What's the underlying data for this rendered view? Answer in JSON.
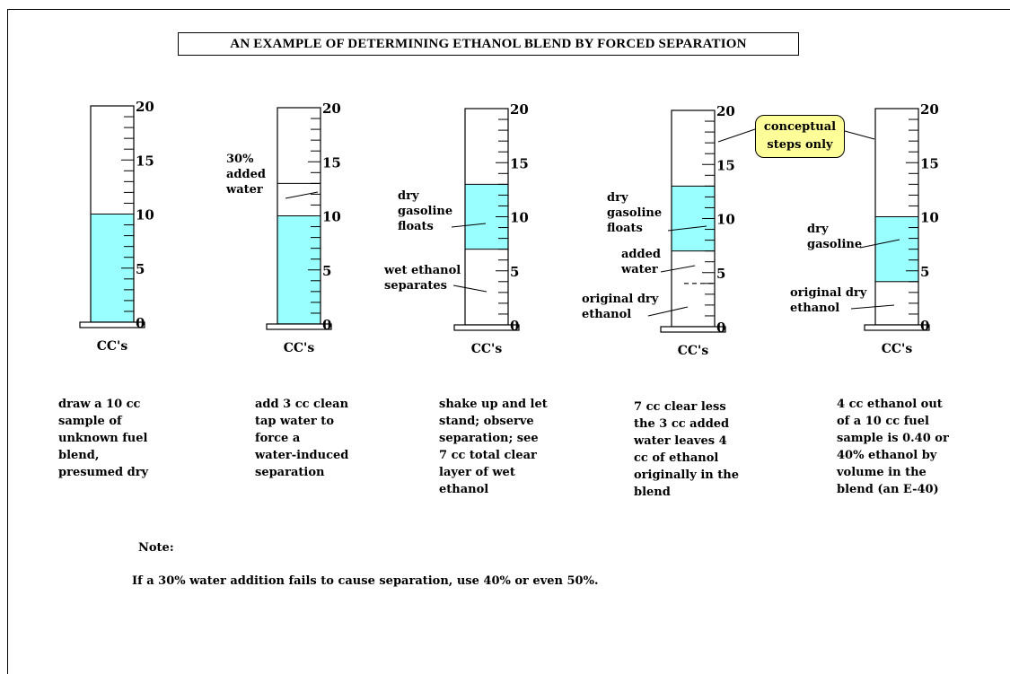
{
  "title": "AN EXAMPLE OF DETERMINING ETHANOL BLEND BY FORCED SEPARATION",
  "colors": {
    "liquid": "#99ffff",
    "callout_fill": "#ffff99",
    "ink": "#000000"
  },
  "scale": {
    "min": 0,
    "max": 20,
    "major_labels": [
      "0",
      "5",
      "10",
      "15",
      "20"
    ],
    "unit_label": "CC's"
  },
  "cylinders": [
    {
      "id": 1,
      "layers": [
        {
          "from": 0,
          "to": 10,
          "filled": true
        }
      ],
      "labels": [],
      "caption": "draw a 10 cc\nsample of\nunknown fuel\nblend,\npresumed dry"
    },
    {
      "id": 2,
      "layers": [
        {
          "from": 0,
          "to": 10,
          "filled": true
        },
        {
          "from": 10,
          "to": 13,
          "filled": false,
          "line_top": true
        }
      ],
      "labels": [
        {
          "text": "30%\nadded\nwater"
        }
      ],
      "caption": "add 3 cc clean\ntap water to\nforce a\nwater-induced\nseparation"
    },
    {
      "id": 3,
      "layers": [
        {
          "from": 7,
          "to": 13,
          "filled": true
        }
      ],
      "labels": [
        {
          "text": "dry\ngasoline\nfloats"
        },
        {
          "text": "wet ethanol\nseparates"
        }
      ],
      "caption": "shake up and let\nstand;  observe\nseparation;  see\n7 cc total clear\nlayer of wet\nethanol"
    },
    {
      "id": 4,
      "layers": [
        {
          "from": 7,
          "to": 13,
          "filled": true
        }
      ],
      "labels": [
        {
          "text": "dry\ngasoline\nfloats"
        },
        {
          "text": "added\nwater"
        },
        {
          "text": "original dry\nethanol"
        }
      ],
      "caption": "7 cc clear less\nthe 3 cc added\nwater leaves 4\ncc of ethanol\noriginally in the\nblend"
    },
    {
      "id": 5,
      "layers": [
        {
          "from": 4,
          "to": 10,
          "filled": true
        }
      ],
      "labels": [
        {
          "text": "dry\ngasoline"
        },
        {
          "text": "original dry\nethanol"
        }
      ],
      "caption": "4 cc ethanol out\nof a 10 cc fuel\nsample is 0.40 or\n40% ethanol by\nvolume in the\nblend (an E-40)"
    }
  ],
  "callout": {
    "text": "conceptual\nsteps only"
  },
  "note": {
    "heading": "Note:",
    "body": "If a 30% water addition fails to cause separation,  use 40% or even 50%."
  }
}
